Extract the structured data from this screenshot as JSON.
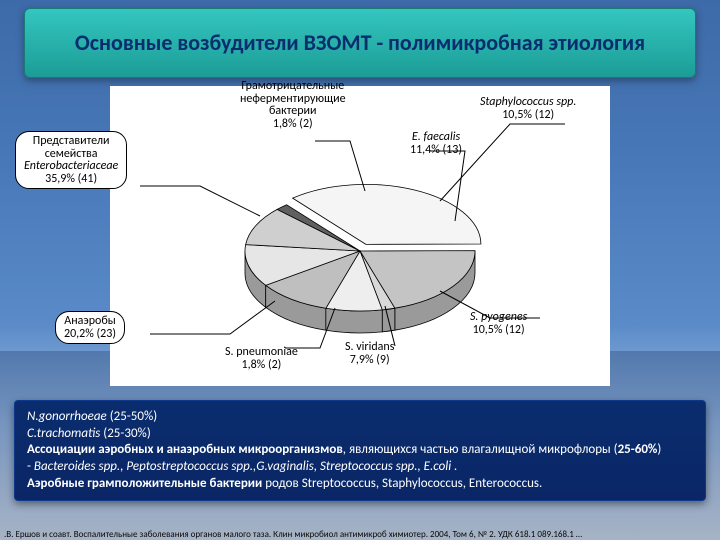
{
  "title": {
    "text": "Основные возбудители ВЗОМТ - полимикробная этиология",
    "color": "#0a2d6e",
    "fontsize": 22,
    "bg_gradient": [
      "#34c6c0",
      "#1c9c96"
    ]
  },
  "chart": {
    "type": "pie-3d",
    "background": "#ffffff",
    "explode_slice": 0,
    "slices": [
      {
        "label": "Представители\nсемейства\nEnterobacteriaceae\n35,9% (41)",
        "value": 35.9,
        "n": 41,
        "fill": "#f5f5f5",
        "highlight": true
      },
      {
        "label": "Анаэробы\n20,2% (23)",
        "value": 20.2,
        "n": 23,
        "fill": "#c4c4c4",
        "highlight": true
      },
      {
        "label": "S. pneumoniae\n1,8% (2)",
        "value": 1.8,
        "n": 2,
        "fill": "#d8d8d8"
      },
      {
        "label": "S. viridans\n7,9% (9)",
        "value": 7.9,
        "n": 9,
        "fill": "#eeeeee"
      },
      {
        "label": "S. pyogenes\n10,5% (12)",
        "value": 10.5,
        "n": 12,
        "fill": "#bfbfbf"
      },
      {
        "label": "E. faecalis\n11,4% (13)",
        "value": 11.4,
        "n": 13,
        "fill": "#e6e6e6"
      },
      {
        "label": "Staphylococcus spp.\n10,5% (12)",
        "value": 10.5,
        "n": 12,
        "fill": "#cfcfcf"
      },
      {
        "label": "Грамотрицательные\nнеферментирующие\nбактерии\n1,8% (2)",
        "value": 1.8,
        "n": 2,
        "fill": "#606060"
      }
    ],
    "label_fontsize": 12,
    "label_color": "#000000",
    "leader_color": "#000000",
    "leader_width": 1,
    "side_fill": "#9a9a9a",
    "edge_stroke": "#000000",
    "edge_width": 0.8
  },
  "info": {
    "fontsize": 13,
    "color": "#ffffff",
    "bg": "#0a2d6e",
    "lines": [
      "<i>N.gonorrhoeae</i> (25-50%)",
      "<i>C.trachomatis</i> (25-30%)",
      "<b>Ассоциации аэробных и анаэробных микроорганизмов</b>, являющихся частью влагалищной микрофлоры (<b>25-60%</b>)",
      "- <i>Bacteroides spp., Peptostreptococcus spp.,G.vaginalis, Streptococcus spp., E.coli .</i>",
      "<b>Аэробные грамположительные бактерии</b> родов Streptococcus, Staphylococcus, Enterococcus."
    ]
  },
  "citation": {
    "text": ".В. Ершов и соавт. Воспалительные заболевания органов малого таза. Клин микробиол антимикроб химиотер. 2004, Том 6, № 2. УДК 618.1 089.168.1 …",
    "fontsize": 9,
    "color": "#0a0a0a"
  }
}
